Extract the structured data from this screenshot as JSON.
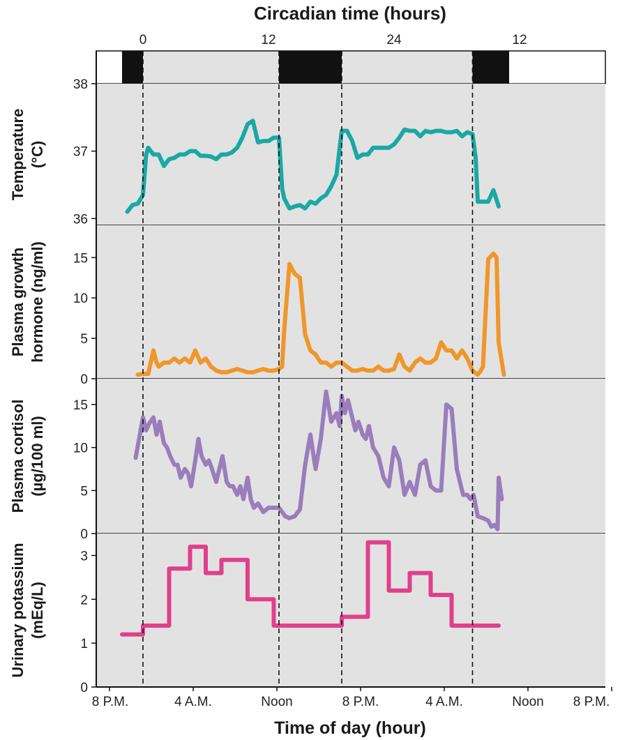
{
  "top_axis": {
    "title": "Circadian time (hours)",
    "tick_labels": [
      "0",
      "12",
      "24",
      "12"
    ],
    "light_dark_bar": {
      "colors": {
        "dark": "#111111",
        "light": "#e2e2e2"
      },
      "segments": [
        {
          "state": "dark",
          "from_hour": 0,
          "to_hour": 2
        },
        {
          "state": "light",
          "from_hour": 2,
          "to_hour": 15
        },
        {
          "state": "dark",
          "from_hour": 15,
          "to_hour": 21
        },
        {
          "state": "light",
          "from_hour": 21,
          "to_hour": 33.5
        },
        {
          "state": "dark",
          "from_hour": 33.5,
          "to_hour": 37
        }
      ]
    }
  },
  "x_axis": {
    "title": "Time of day (hour)",
    "tick_labels": [
      "8 P.M.",
      "4 A.M.",
      "Noon",
      "8 P.M.",
      "4 A.M.",
      "Noon",
      "8 P.M."
    ],
    "tick_hours": [
      0,
      8,
      16,
      24,
      32,
      40,
      48
    ]
  },
  "dashed_lines_hours": [
    2,
    15,
    21,
    33.5
  ],
  "chart_data": {
    "type": "line",
    "x_unit": "hours elapsed from 8 P.M. (first day)",
    "xlim": [
      0,
      37
    ],
    "panel_background": "#e2e2e2",
    "panels": [
      {
        "name": "temperature",
        "ylabel_lines": [
          "Temperature",
          "(°C)"
        ],
        "color": "#1aa8a4",
        "ylim": [
          35.9,
          38
        ],
        "ytick_values": [
          36,
          37,
          38
        ],
        "ytick_labels": [
          "36",
          "37",
          "38"
        ],
        "step": false,
        "x": [
          0.5,
          1,
          1.5,
          2,
          2.3,
          2.5,
          3,
          3.5,
          4,
          4.5,
          5,
          5.5,
          6,
          6.5,
          7,
          7.5,
          8,
          8.5,
          9,
          9.5,
          10,
          10.5,
          11,
          11.5,
          12,
          12.5,
          13,
          13.5,
          14,
          14.5,
          15,
          15.3,
          15.5,
          16,
          16.5,
          17,
          17.5,
          18,
          18.5,
          19,
          19.5,
          20,
          20.5,
          21,
          21.3,
          21.5,
          22,
          22.5,
          23,
          23.5,
          24,
          24.5,
          25,
          25.5,
          26,
          26.5,
          27,
          27.5,
          28,
          28.5,
          29,
          29.5,
          30,
          30.5,
          31,
          31.5,
          32,
          32.5,
          33,
          33.5,
          33.8,
          34,
          34.5,
          35,
          35.5,
          36
        ],
        "y": [
          36.1,
          36.2,
          36.22,
          36.35,
          36.95,
          37.05,
          36.95,
          36.95,
          36.78,
          36.88,
          36.9,
          36.95,
          36.95,
          37.0,
          37.0,
          36.93,
          36.93,
          36.92,
          36.88,
          36.95,
          36.95,
          36.98,
          37.05,
          37.2,
          37.4,
          37.45,
          37.13,
          37.15,
          37.15,
          37.2,
          37.2,
          36.45,
          36.3,
          36.15,
          36.18,
          36.2,
          36.15,
          36.25,
          36.22,
          36.3,
          36.35,
          36.48,
          36.65,
          37.3,
          37.3,
          37.3,
          37.15,
          36.9,
          36.95,
          36.95,
          37.05,
          37.05,
          37.05,
          37.05,
          37.1,
          37.2,
          37.32,
          37.3,
          37.3,
          37.22,
          37.3,
          37.28,
          37.3,
          37.3,
          37.28,
          37.28,
          37.3,
          37.22,
          37.28,
          37.25,
          36.9,
          36.25,
          36.25,
          36.25,
          36.42,
          36.18
        ],
        "line": {
          "draw": "line_draw.temperature",
          "x": "x_line_hours.temperature"
        }
      },
      {
        "name": "growth_hormone",
        "ylabel_lines": [
          "Plasma growth",
          "hormone (ng/ml)"
        ],
        "color": "#f0962a",
        "ylim": [
          0,
          19
        ],
        "ytick_values": [
          0,
          5,
          10,
          15
        ],
        "ytick_labels": [
          "0",
          "5",
          "10",
          "15"
        ],
        "step": false,
        "x": [
          1.5,
          2,
          2.5,
          3,
          3.3,
          3.5,
          4,
          4.5,
          5,
          5.5,
          6,
          6.5,
          7,
          7.5,
          8,
          8.5,
          9,
          9.5,
          10,
          10.5,
          11,
          11.5,
          12,
          12.5,
          13,
          13.5,
          14,
          14.5,
          15,
          15.3,
          15.5,
          16,
          16.5,
          17,
          17.5,
          18,
          18.5,
          19,
          19.5,
          20,
          20.5,
          21,
          21.5,
          22,
          22.5,
          23,
          23.5,
          24,
          24.5,
          25,
          25.5,
          26,
          26.5,
          27,
          27.5,
          28,
          28.5,
          29,
          29.5,
          30,
          30.5,
          31,
          31.5,
          32,
          32.5,
          33,
          33.5,
          34,
          34.3,
          34.5,
          35,
          35.5,
          35.8,
          36,
          36.5
        ],
        "y": [
          0.5,
          0.6,
          0.6,
          3.5,
          2.0,
          1.5,
          2.0,
          2.0,
          2.5,
          2.0,
          2.5,
          2.0,
          3.5,
          2.0,
          2.5,
          1.5,
          1.0,
          0.8,
          0.8,
          1.0,
          1.2,
          1.0,
          0.8,
          0.8,
          1.0,
          1.2,
          1.0,
          1.0,
          1.2,
          1.5,
          6.0,
          14.2,
          13.0,
          12.5,
          5.5,
          3.5,
          3.0,
          2.0,
          2.0,
          1.5,
          2.0,
          2.0,
          1.5,
          1.0,
          1.0,
          1.2,
          1.0,
          1.0,
          1.5,
          1.0,
          1.0,
          1.2,
          3.0,
          1.5,
          1.0,
          2.0,
          2.5,
          2.0,
          2.0,
          2.5,
          4.5,
          3.5,
          3.5,
          2.5,
          3.5,
          2.5,
          1.0,
          0.5,
          1.0,
          1.5,
          14.8,
          15.5,
          15.0,
          4.5,
          0.5
        ],
        "line": {
          "draw": "line_draw.growth_hormone",
          "x": "x_line_hours.growth_hormone"
        }
      },
      {
        "name": "cortisol",
        "ylabel_lines": [
          "Plasma cortisol",
          "(µg/100 ml)"
        ],
        "color": "#9a7dbb",
        "ylim": [
          0,
          18
        ],
        "ytick_values": [
          0,
          5,
          10,
          15
        ],
        "ytick_labels": [
          "0",
          "5",
          "10",
          "15"
        ],
        "step": false,
        "x": [
          1.3,
          1.7,
          2,
          2.3,
          2.6,
          3,
          3.3,
          3.6,
          4,
          4.3,
          4.6,
          5,
          5.3,
          5.6,
          6,
          6.3,
          6.6,
          7,
          7.3,
          7.6,
          8,
          8.3,
          8.6,
          9,
          9.3,
          9.6,
          10,
          10.3,
          10.6,
          11,
          11.3,
          11.6,
          12,
          12.3,
          12.6,
          13,
          13.5,
          14,
          14.5,
          15,
          15.3,
          15.6,
          16,
          16.5,
          17,
          17.5,
          18,
          18.5,
          19,
          19.5,
          20,
          20.5,
          20.8,
          21,
          21.3,
          21.6,
          22,
          22.3,
          22.6,
          23,
          23.3,
          23.6,
          24,
          24.5,
          25,
          25.5,
          26,
          26.5,
          27,
          27.5,
          28,
          28.5,
          29,
          29.5,
          30,
          30.5,
          31,
          31.5,
          32,
          32.3,
          32.6,
          33,
          33.3,
          33.6,
          34,
          34.5,
          35,
          35.3,
          35.6,
          35.9,
          36,
          36.3
        ],
        "y": [
          8.8,
          11.5,
          13.5,
          12.0,
          12.8,
          13.5,
          11.5,
          13.0,
          10.5,
          10.0,
          9.0,
          8.0,
          8.0,
          6.5,
          7.5,
          7.0,
          5.5,
          8.5,
          11.0,
          9.0,
          8.0,
          8.5,
          7.5,
          6.0,
          7.5,
          9.0,
          6.0,
          5.5,
          5.5,
          4.5,
          5.5,
          4.0,
          6.5,
          4.0,
          3.0,
          3.5,
          2.5,
          3.0,
          3.0,
          3.0,
          2.5,
          2.0,
          1.8,
          2.0,
          2.8,
          8.0,
          11.5,
          7.5,
          11.0,
          16.5,
          13.0,
          14.0,
          12.5,
          16.0,
          14.0,
          15.5,
          13.5,
          12.0,
          13.0,
          11.5,
          11.0,
          12.5,
          10.0,
          9.0,
          6.5,
          5.5,
          10.0,
          8.5,
          4.5,
          6.0,
          4.5,
          8.0,
          8.5,
          5.5,
          5.0,
          5.0,
          15.0,
          14.5,
          7.5,
          6.0,
          4.5,
          4.5,
          4.0,
          4.5,
          2.0,
          1.8,
          1.5,
          0.8,
          1.0,
          0.5,
          6.5,
          4.0
        ],
        "line": {
          "draw": "line_draw.cortisol",
          "x": "x_line_hours.cortisol"
        }
      },
      {
        "name": "potassium",
        "ylabel_lines": [
          "Urinary potassium",
          "(mEq/L)"
        ],
        "color": "#e0408a",
        "ylim": [
          0,
          3.5
        ],
        "ytick_values": [
          0,
          1,
          2,
          3
        ],
        "ytick_labels": [
          "0",
          "1",
          "2",
          "3"
        ],
        "step": true,
        "step_x_starts": [
          0,
          2,
          4.5,
          6.5,
          8,
          9.5,
          12,
          14.5,
          16,
          21,
          23.5,
          25.5,
          27.5,
          29.5,
          31.5,
          33,
          35
        ],
        "step_values": [
          1.2,
          1.4,
          2.7,
          3.2,
          2.6,
          2.9,
          2.0,
          1.4,
          1.4,
          1.6,
          3.3,
          2.2,
          2.6,
          2.1,
          1.4,
          1.4,
          1.4
        ],
        "step_x_end": 36,
        "line": {
          "draw": "line_draw.potassium",
          "x": "x_line_hours.potassium"
        }
      }
    ]
  }
}
